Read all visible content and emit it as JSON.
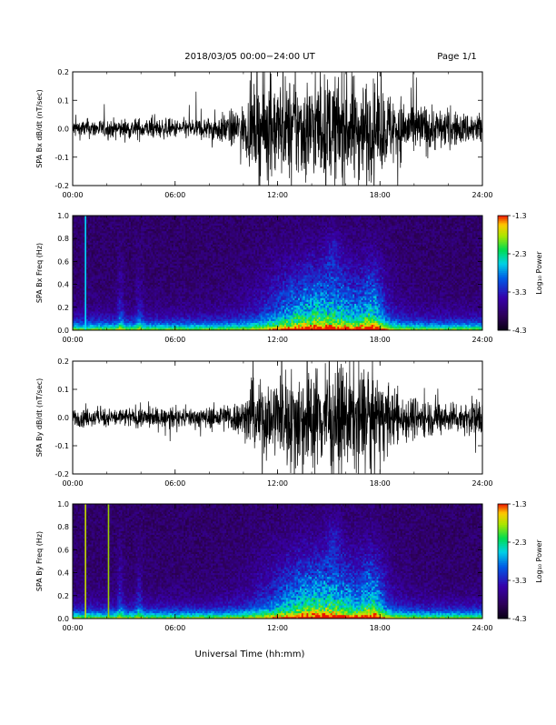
{
  "header": {
    "title": "2018/03/05   00:00−24:00 UT",
    "page": "Page 1/1"
  },
  "footer": {
    "xlabel": "Universal Time (hh:mm)"
  },
  "colorbar": {
    "label": "Log₁₀ Power",
    "ticks": [
      "-1.3",
      "-2.3",
      "-3.3",
      "-4.3"
    ],
    "range": [
      -4.3,
      -1.3
    ]
  },
  "chart_data": [
    {
      "type": "line",
      "ylabel": "SPA Bx dB/dt (nT/sec)",
      "xlim": [
        0,
        24
      ],
      "ylim": [
        -0.2,
        0.2
      ],
      "xticks": [
        "00:00",
        "06:00",
        "12:00",
        "18:00",
        "24:00"
      ],
      "yticks": [
        "0.2",
        "0.1",
        "0.0",
        "-0.1",
        "-0.2"
      ],
      "envelope": {
        "x": [
          0,
          2,
          4,
          6,
          8,
          9,
          10,
          10.5,
          11,
          12,
          13,
          14,
          15,
          16,
          17,
          18,
          19,
          20,
          21,
          22,
          23,
          24
        ],
        "amplitude": [
          0.035,
          0.035,
          0.04,
          0.035,
          0.045,
          0.06,
          0.09,
          0.14,
          0.2,
          0.18,
          0.2,
          0.19,
          0.2,
          0.2,
          0.2,
          0.16,
          0.13,
          0.1,
          0.09,
          0.07,
          0.06,
          0.07
        ]
      }
    },
    {
      "type": "heatmap",
      "ylabel": "SPA Bx Freq (Hz)",
      "xlim": [
        0,
        24
      ],
      "ylim": [
        0,
        1.0
      ],
      "xticks": [
        "00:00",
        "06:00",
        "12:00",
        "18:00",
        "24:00"
      ],
      "yticks": [
        "1.0",
        "0.8",
        "0.6",
        "0.4",
        "0.2",
        "0.0"
      ],
      "vlines": [
        {
          "x": 0.75,
          "color": "#00e0ff"
        }
      ]
    },
    {
      "type": "line",
      "ylabel": "SPA By dB/dt (nT/sec)",
      "xlim": [
        0,
        24
      ],
      "ylim": [
        -0.2,
        0.2
      ],
      "xticks": [
        "00:00",
        "06:00",
        "12:00",
        "18:00",
        "24:00"
      ],
      "yticks": [
        "0.2",
        "0.1",
        "0.0",
        "-0.1",
        "-0.2"
      ],
      "envelope": {
        "x": [
          0,
          2,
          4,
          6,
          8,
          9,
          10,
          10.5,
          11,
          12,
          13,
          14,
          15,
          16,
          17,
          18,
          19,
          20,
          21,
          22,
          23,
          24
        ],
        "amplitude": [
          0.035,
          0.035,
          0.04,
          0.035,
          0.04,
          0.055,
          0.07,
          0.13,
          0.14,
          0.16,
          0.2,
          0.2,
          0.2,
          0.2,
          0.2,
          0.15,
          0.1,
          0.08,
          0.07,
          0.06,
          0.06,
          0.08
        ]
      }
    },
    {
      "type": "heatmap",
      "ylabel": "SPA By Freq (Hz)",
      "xlim": [
        0,
        24
      ],
      "ylim": [
        0,
        1.0
      ],
      "xticks": [
        "00:00",
        "06:00",
        "12:00",
        "18:00",
        "24:00"
      ],
      "yticks": [
        "1.0",
        "0.8",
        "0.6",
        "0.4",
        "0.2",
        "0.0"
      ],
      "vlines": [
        {
          "x": 0.75,
          "color": "#c8e000"
        },
        {
          "x": 2.1,
          "color": "#9ad000"
        }
      ]
    }
  ]
}
